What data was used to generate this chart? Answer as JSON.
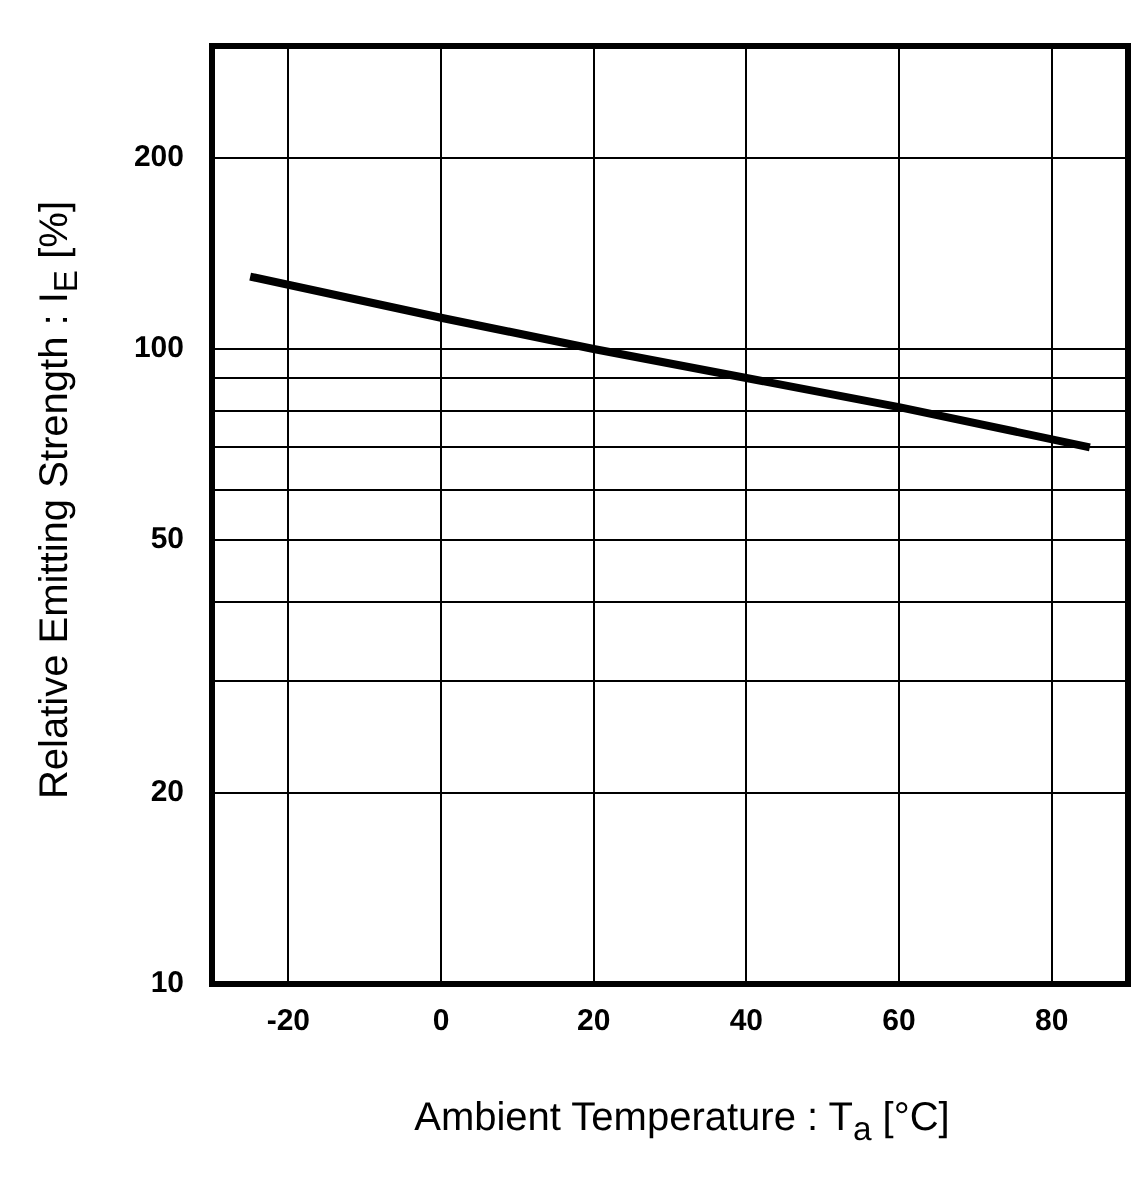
{
  "chart_data": {
    "type": "line",
    "xlabel": "Ambient Temperature : T$_{a}$ [°C]",
    "ylabel": "Relative Emitting Strength : I$_{E}$ [%]",
    "x": [
      -25,
      0,
      20,
      40,
      60,
      85
    ],
    "series": [
      {
        "color": "#000000",
        "values": [
          130,
          112,
          100,
          90,
          81,
          70
        ]
      }
    ],
    "xlim": [
      -30,
      90
    ],
    "xticks": [
      -20,
      0,
      20,
      40,
      60,
      80
    ],
    "ylim": [
      10,
      300
    ],
    "yticks": [
      10,
      20,
      {
        "value": 30,
        "label": null
      },
      {
        "value": 40,
        "label": null
      },
      50,
      {
        "value": 60,
        "label": null
      },
      {
        "value": 70,
        "label": null
      },
      {
        "value": 80,
        "label": null
      },
      {
        "value": 90,
        "label": null
      },
      100,
      200
    ],
    "log": "y",
    "grid": true,
    "marker": "none",
    "line_style": "solid"
  }
}
